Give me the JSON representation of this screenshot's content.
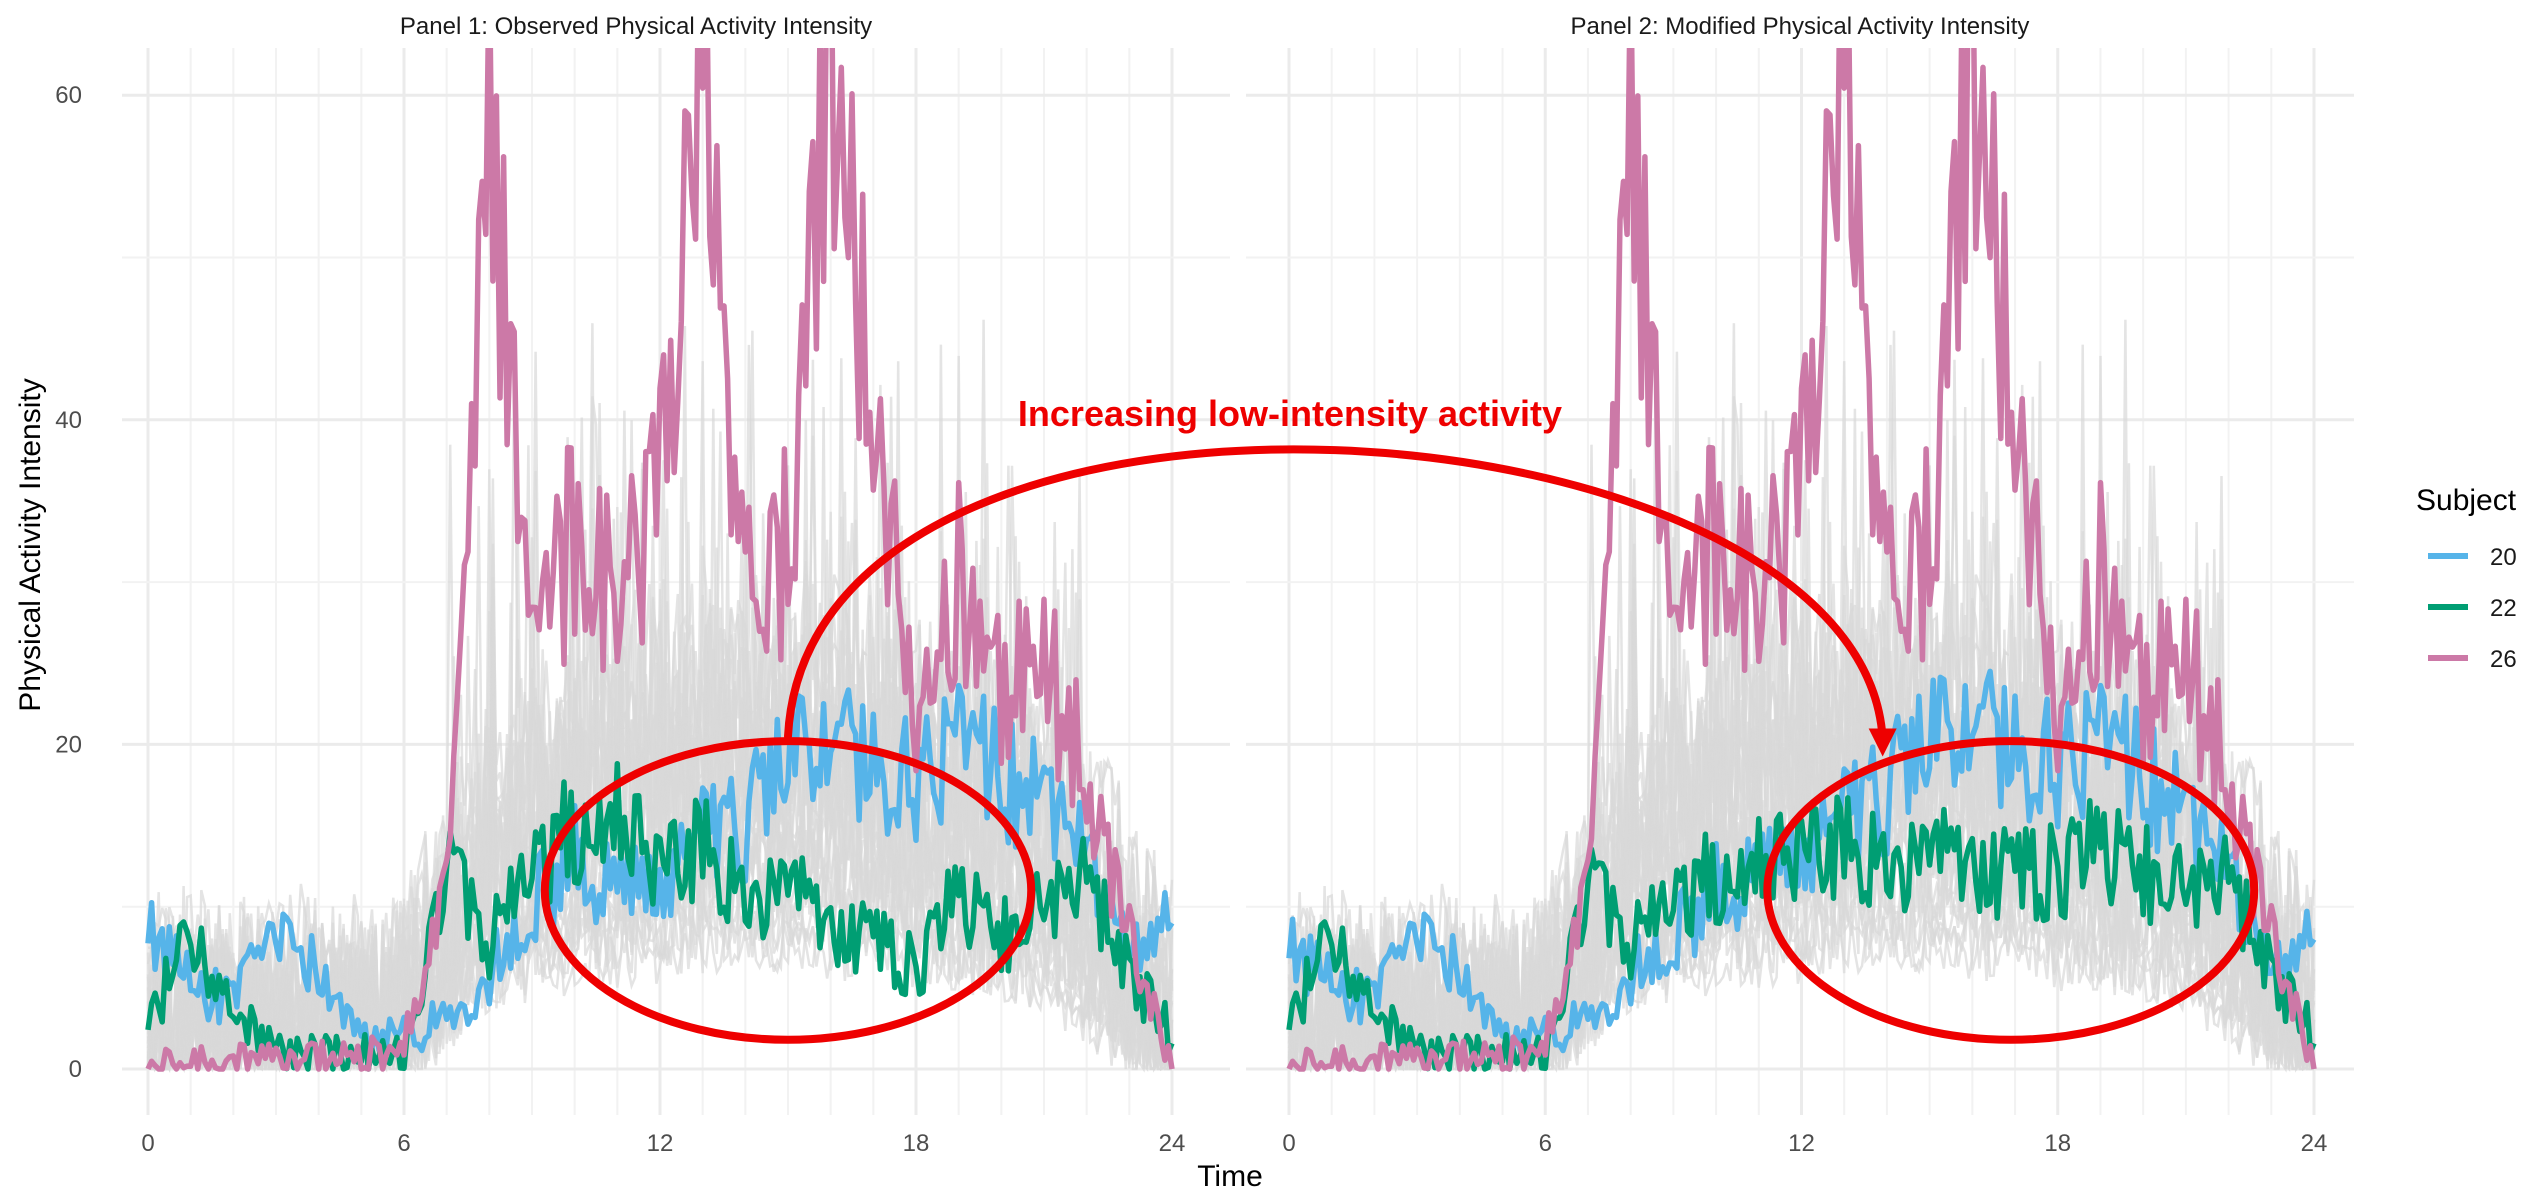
{
  "chart_data": [
    {
      "type": "line",
      "title": "Panel 1: Observed Physical Activity Intensity",
      "xlabel": "Time",
      "ylabel": "Physical Activity Intensity",
      "xlim": [
        0,
        24
      ],
      "ylim": [
        -3,
        63
      ],
      "xticks": [
        0,
        6,
        12,
        18,
        24
      ],
      "yticks": [
        0,
        20,
        40,
        60
      ],
      "grid": true,
      "background_series": {
        "count": 30,
        "color": "#d9d9d9",
        "description": "other subjects"
      },
      "series": [
        {
          "name": "20",
          "color": "#56B4E9",
          "x": [
            0,
            1,
            2,
            3,
            4,
            5,
            6,
            7,
            8,
            9,
            10,
            11,
            12,
            13,
            14,
            15,
            16,
            17,
            18,
            19,
            20,
            21,
            22,
            23,
            24
          ],
          "y": [
            9,
            5,
            4,
            8,
            6,
            2,
            2,
            3,
            6,
            10,
            13,
            11,
            11,
            14,
            15,
            19,
            20,
            19,
            18,
            20,
            18,
            16,
            13,
            7,
            9
          ]
        },
        {
          "name": "22",
          "color": "#009E73",
          "x": [
            0,
            1,
            2,
            3,
            4,
            5,
            6,
            7,
            8,
            9,
            10,
            11,
            12,
            13,
            14,
            15,
            16,
            17,
            18,
            19,
            20,
            21,
            22,
            23,
            24
          ],
          "y": [
            3,
            8,
            4,
            1,
            1,
            1,
            1,
            12,
            8,
            12,
            15,
            16,
            12,
            14,
            10,
            12,
            9,
            8,
            6,
            11,
            8,
            10,
            12,
            6,
            2
          ]
        },
        {
          "name": "26",
          "color": "#CC79A7",
          "x": [
            0,
            1,
            2,
            3,
            4,
            5,
            6,
            7,
            8,
            9,
            10,
            11,
            12,
            13,
            14,
            15,
            16,
            17,
            18,
            19,
            20,
            21,
            22,
            23,
            24
          ],
          "y": [
            0.3,
            0.4,
            0.5,
            0.5,
            0.6,
            0.8,
            1.5,
            12,
            58,
            26,
            33,
            28,
            35,
            63,
            30,
            32,
            63,
            40,
            22,
            30,
            24,
            25,
            18,
            8,
            0.5
          ]
        }
      ]
    },
    {
      "type": "line",
      "title": "Panel 2: Modified Physical Activity Intensity",
      "xlabel": "Time",
      "ylabel": "Physical Activity Intensity",
      "xlim": [
        0,
        24
      ],
      "ylim": [
        -3,
        63
      ],
      "xticks": [
        0,
        6,
        12,
        18,
        24
      ],
      "yticks": [
        0,
        20,
        40,
        60
      ],
      "grid": true,
      "background_series": {
        "count": 30,
        "color": "#d9d9d9",
        "description": "other subjects"
      },
      "series": [
        {
          "name": "20",
          "color": "#56B4E9",
          "x": [
            0,
            1,
            2,
            3,
            4,
            5,
            6,
            7,
            8,
            9,
            10,
            11,
            12,
            13,
            14,
            15,
            16,
            17,
            18,
            19,
            20,
            21,
            22,
            23,
            24
          ],
          "y": [
            8,
            5,
            4,
            8,
            6,
            2,
            2,
            3,
            6,
            8,
            11,
            12,
            13,
            15,
            17,
            20,
            21,
            20,
            19,
            20,
            18,
            15,
            12,
            6,
            8
          ]
        },
        {
          "name": "22",
          "color": "#009E73",
          "x": [
            0,
            1,
            2,
            3,
            4,
            5,
            6,
            7,
            8,
            9,
            10,
            11,
            12,
            13,
            14,
            15,
            16,
            17,
            18,
            19,
            20,
            21,
            22,
            23,
            24
          ],
          "y": [
            3,
            8,
            4,
            1,
            1,
            1,
            1,
            11,
            8,
            10,
            12,
            13,
            13,
            14,
            12,
            14,
            13,
            12,
            12,
            14,
            12,
            11,
            12,
            6,
            2
          ]
        },
        {
          "name": "26",
          "color": "#CC79A7",
          "x": [
            0,
            1,
            2,
            3,
            4,
            5,
            6,
            7,
            8,
            9,
            10,
            11,
            12,
            13,
            14,
            15,
            16,
            17,
            18,
            19,
            20,
            21,
            22,
            23,
            24
          ],
          "y": [
            0.3,
            0.4,
            0.5,
            0.5,
            0.6,
            0.8,
            1.5,
            12,
            58,
            26,
            33,
            28,
            35,
            63,
            30,
            32,
            63,
            40,
            22,
            30,
            24,
            25,
            18,
            8,
            0.5
          ]
        }
      ]
    }
  ],
  "legend": {
    "title": "Subject",
    "items": [
      {
        "label": "20",
        "color": "#56B4E9"
      },
      {
        "label": "22",
        "color": "#009E73"
      },
      {
        "label": "26",
        "color": "#CC79A7"
      }
    ]
  },
  "annotation": {
    "text": "Increasing low-intensity activity",
    "color": "#ee0000",
    "ellipses": [
      {
        "panel": 0,
        "center": [
          15,
          11
        ],
        "radius_x": 5.7,
        "radius_y": 9.2
      },
      {
        "panel": 1,
        "center": [
          16.9,
          11
        ],
        "radius_x": 5.7,
        "radius_y": 9.2
      }
    ],
    "arrows": [
      {
        "from_panel": 0,
        "from": [
          15,
          20.5
        ],
        "to_panel": 1,
        "to": [
          13.9,
          19.5
        ]
      }
    ]
  }
}
